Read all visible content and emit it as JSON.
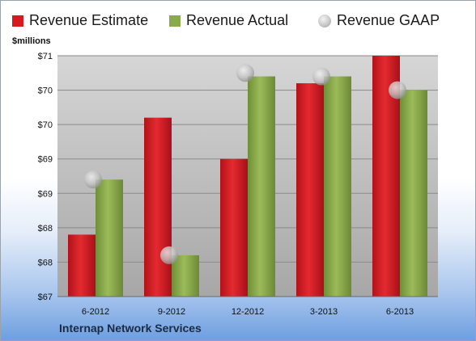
{
  "legend": {
    "estimate_label": "Revenue Estimate",
    "actual_label": "Revenue Actual",
    "gaap_label": "Revenue GAAP"
  },
  "unit_label": "$millions",
  "company_label": "Internap Network Services",
  "colors": {
    "estimate": "#d71920",
    "actual": "#8aab4c",
    "gaap": "#c0c0c0"
  },
  "chart_data": {
    "type": "bar",
    "categories": [
      "6-2012",
      "9-2012",
      "12-2012",
      "3-2013",
      "6-2013"
    ],
    "series": [
      {
        "name": "Revenue Estimate",
        "values": [
          67.9,
          69.6,
          69.0,
          70.1,
          70.5
        ]
      },
      {
        "name": "Revenue Actual",
        "values": [
          68.7,
          67.6,
          70.2,
          70.2,
          70.0
        ]
      }
    ],
    "gaap": {
      "name": "Revenue GAAP",
      "values": [
        68.7,
        67.6,
        70.25,
        70.2,
        70.0
      ]
    },
    "yticks": [
      {
        "value": 67.0,
        "label": "$67"
      },
      {
        "value": 67.5,
        "label": "$68"
      },
      {
        "value": 68.0,
        "label": "$68"
      },
      {
        "value": 68.5,
        "label": "$69"
      },
      {
        "value": 69.0,
        "label": "$69"
      },
      {
        "value": 69.5,
        "label": "$70"
      },
      {
        "value": 70.0,
        "label": "$70"
      },
      {
        "value": 70.5,
        "label": "$71"
      }
    ],
    "ylim": [
      67.0,
      70.5
    ],
    "ylabel": "$millions",
    "grid": true,
    "legend_position": "top"
  }
}
